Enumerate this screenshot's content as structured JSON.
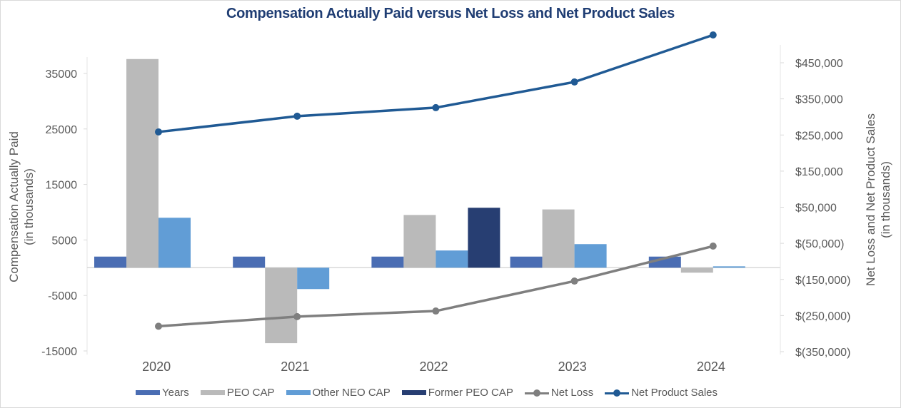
{
  "chart_data": {
    "type": "bar",
    "title": "Compensation Actually Paid versus Net Loss and Net Product Sales",
    "categories": [
      "2020",
      "2021",
      "2022",
      "2023",
      "2024"
    ],
    "y_left": {
      "label_line1": "Compensation Actually Paid",
      "label_line2": "(in thousands)",
      "ylim": [
        -15000,
        40000
      ],
      "ticks": [
        35000,
        25000,
        15000,
        5000,
        -5000,
        -15000
      ],
      "tick_labels": [
        "35000",
        "25000",
        "15000",
        "5000",
        "-5000",
        "-15000"
      ]
    },
    "y_right": {
      "label_line1": "Net Loss and Net Product Sales",
      "label_line2": "(in thousands)",
      "ylim": [
        -350000,
        550000
      ],
      "ticks": [
        450000,
        350000,
        250000,
        150000,
        50000,
        -50000,
        -150000,
        -250000,
        -350000
      ],
      "tick_labels": [
        "$450,000",
        "$350,000",
        "$250,000",
        "$150,000",
        "$50,000",
        "$(50,000)",
        "$(150,000)",
        "$(250,000)",
        "$(350,000)"
      ]
    },
    "bar_series": [
      {
        "name": "Years",
        "color": "#4a6db3",
        "values": [
          2000,
          2000,
          2000,
          2000,
          2000
        ]
      },
      {
        "name": "PEO CAP",
        "color": "#bababa",
        "values": [
          37600,
          -13600,
          9500,
          10500,
          -900
        ]
      },
      {
        "name": "Other NEO CAP",
        "color": "#619dd6",
        "values": [
          9000,
          -3850,
          3100,
          4250,
          250
        ]
      },
      {
        "name": "Former PEO CAP",
        "color": "#273e72",
        "values": [
          null,
          null,
          10800,
          null,
          null
        ]
      }
    ],
    "line_series": [
      {
        "name": "Net Loss",
        "color": "#7f7f7f",
        "axis": "right",
        "values": [
          -279600,
          -253000,
          -237500,
          -154500,
          -57700
        ]
      },
      {
        "name": "Net Product Sales",
        "color": "#205a94",
        "axis": "right",
        "values": [
          258500,
          302000,
          325700,
          396800,
          527000
        ]
      }
    ],
    "legend_position": "bottom",
    "grid": false
  }
}
